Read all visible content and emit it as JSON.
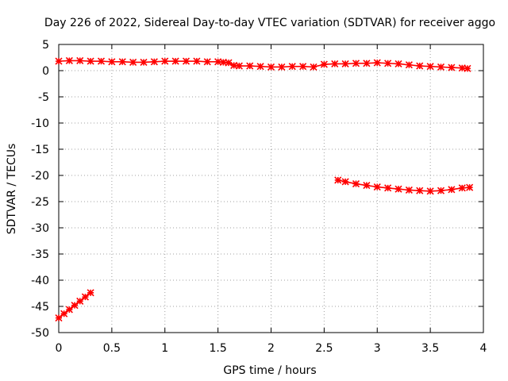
{
  "chart_data": {
    "type": "scatter",
    "title": "Day 226 of 2022, Sidereal Day-to-day VTEC variation (SDTVAR) for receiver aggo",
    "xlabel": "GPS time / hours",
    "ylabel": "SDTVAR / TECUs",
    "xlim": [
      0,
      4
    ],
    "ylim": [
      -50,
      5
    ],
    "xticks": [
      "0",
      "0.5",
      "1",
      "1.5",
      "2",
      "2.5",
      "3",
      "3.5",
      "4"
    ],
    "yticks": [
      "5",
      "0",
      "-5",
      "-10",
      "-15",
      "-20",
      "-25",
      "-30",
      "-35",
      "-40",
      "-45",
      "-50"
    ],
    "grid": true,
    "marker_color": "#ff0000",
    "series": [
      {
        "name": "SDTVAR near zero (upper band)",
        "x": [
          0.0,
          0.1,
          0.2,
          0.3,
          0.4,
          0.5,
          0.6,
          0.7,
          0.8,
          0.9,
          1.0,
          1.1,
          1.2,
          1.3,
          1.4,
          1.5,
          1.55,
          1.6,
          1.65,
          1.7,
          1.8,
          1.9,
          2.0,
          2.1,
          2.2,
          2.3,
          2.4,
          2.5,
          2.6,
          2.7,
          2.8,
          2.9,
          3.0,
          3.1,
          3.2,
          3.3,
          3.4,
          3.5,
          3.6,
          3.7,
          3.8,
          3.85
        ],
        "y": [
          1.8,
          1.9,
          1.9,
          1.8,
          1.8,
          1.7,
          1.7,
          1.6,
          1.6,
          1.7,
          1.8,
          1.8,
          1.8,
          1.8,
          1.7,
          1.7,
          1.6,
          1.5,
          1.0,
          0.9,
          0.9,
          0.8,
          0.7,
          0.7,
          0.8,
          0.8,
          0.7,
          1.2,
          1.3,
          1.3,
          1.4,
          1.4,
          1.5,
          1.4,
          1.3,
          1.1,
          0.9,
          0.8,
          0.7,
          0.6,
          0.5,
          0.4
        ]
      },
      {
        "name": "SDTVAR second satellite arc",
        "x": [
          2.63,
          2.7,
          2.8,
          2.9,
          3.0,
          3.1,
          3.2,
          3.3,
          3.4,
          3.5,
          3.6,
          3.7,
          3.8,
          3.87
        ],
        "y": [
          -20.9,
          -21.2,
          -21.6,
          -21.9,
          -22.2,
          -22.4,
          -22.6,
          -22.8,
          -22.9,
          -23.0,
          -22.9,
          -22.7,
          -22.4,
          -22.3
        ]
      },
      {
        "name": "SDTVAR third satellite arc",
        "x": [
          0.0,
          0.05,
          0.1,
          0.15,
          0.2,
          0.25,
          0.3
        ],
        "y": [
          -47.2,
          -46.4,
          -45.6,
          -44.8,
          -44.0,
          -43.2,
          -42.4
        ]
      }
    ]
  }
}
